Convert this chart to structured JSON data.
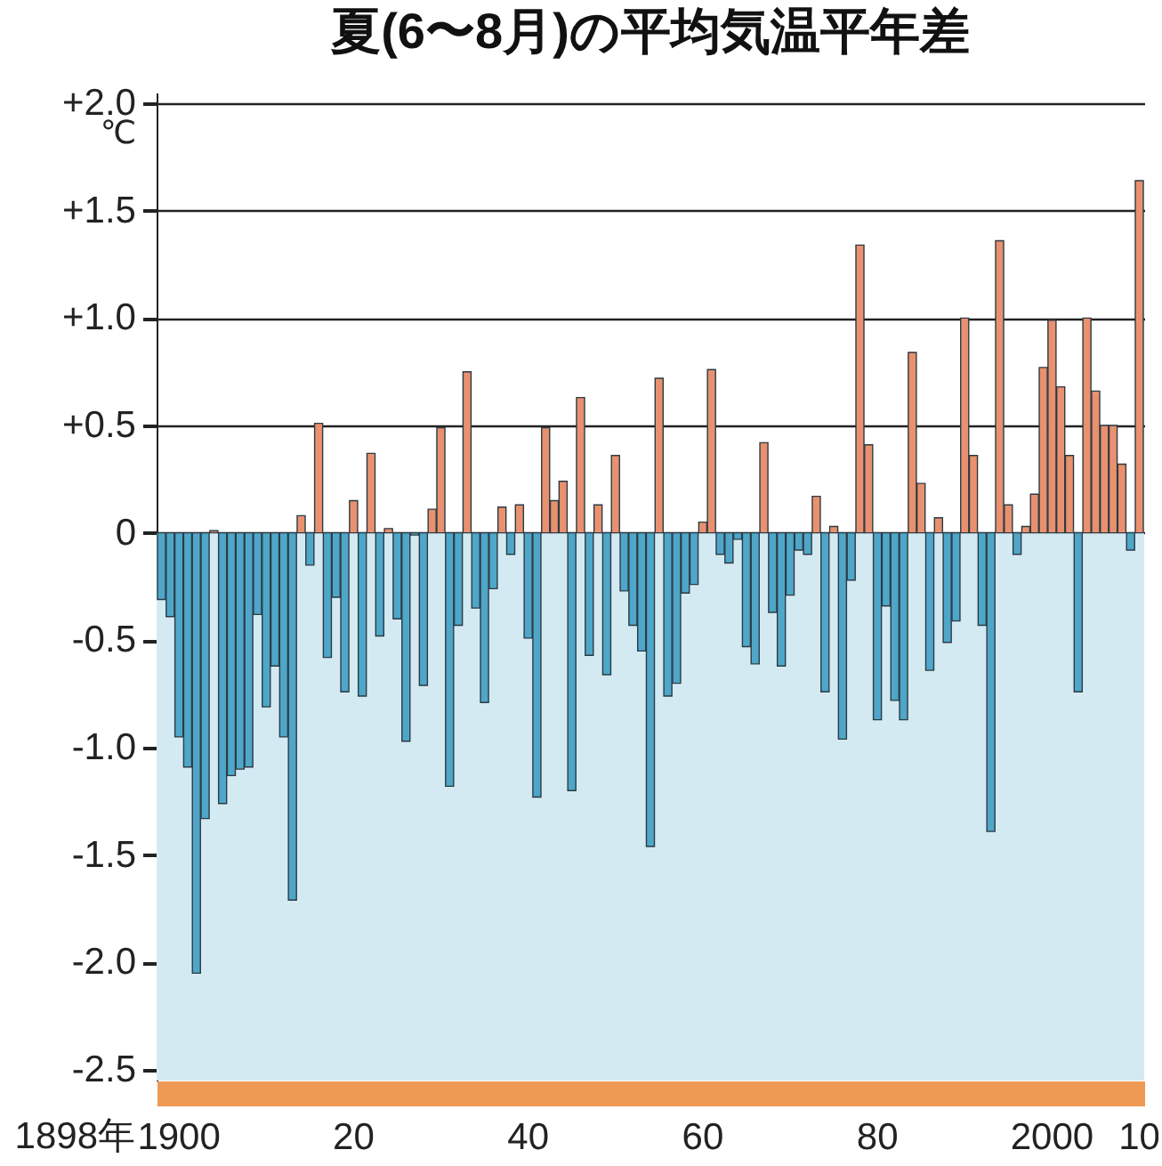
{
  "chart_data": {
    "type": "bar",
    "title": "夏(6〜8月)の平均気温平年差",
    "ylabel": "℃",
    "annotations": [
      "1898年"
    ],
    "categories": [
      null,
      null,
      "1900",
      null,
      null,
      null,
      null,
      null,
      null,
      null,
      null,
      null,
      null,
      null,
      null,
      null,
      null,
      null,
      null,
      null,
      null,
      null,
      "20",
      null,
      null,
      null,
      null,
      null,
      null,
      null,
      null,
      null,
      null,
      null,
      null,
      null,
      null,
      null,
      null,
      null,
      null,
      null,
      "40",
      null,
      null,
      null,
      null,
      null,
      null,
      null,
      null,
      null,
      null,
      null,
      null,
      null,
      null,
      null,
      null,
      null,
      null,
      null,
      "60",
      null,
      null,
      null,
      null,
      null,
      null,
      null,
      null,
      null,
      null,
      null,
      null,
      null,
      null,
      null,
      null,
      null,
      null,
      null,
      "80",
      null,
      null,
      null,
      null,
      null,
      null,
      null,
      null,
      null,
      null,
      null,
      null,
      null,
      null,
      null,
      null,
      null,
      null,
      null,
      "2000",
      null,
      null,
      null,
      null,
      null,
      null,
      null,
      null,
      null,
      "10"
    ],
    "values": [
      -0.31,
      -0.39,
      -0.95,
      -1.09,
      -2.05,
      -1.33,
      0.01,
      -1.26,
      -1.13,
      -1.1,
      -1.09,
      -0.38,
      -0.81,
      -0.62,
      -0.95,
      -1.71,
      0.08,
      -0.15,
      0.51,
      -0.58,
      -0.3,
      -0.74,
      0.15,
      -0.76,
      0.37,
      -0.48,
      0.02,
      -0.4,
      -0.97,
      -0.01,
      -0.71,
      0.11,
      0.49,
      -1.18,
      -0.43,
      0.75,
      -0.35,
      -0.79,
      -0.26,
      0.12,
      -0.1,
      0.13,
      -0.49,
      -1.23,
      0.49,
      0.15,
      0.24,
      -1.2,
      0.63,
      -0.57,
      0.13,
      -0.66,
      0.36,
      -0.27,
      -0.43,
      -0.55,
      -1.46,
      0.72,
      -0.76,
      -0.7,
      -0.28,
      -0.24,
      0.05,
      0.76,
      -0.1,
      -0.14,
      -0.03,
      -0.53,
      -0.61,
      0.42,
      -0.37,
      -0.62,
      -0.29,
      -0.08,
      -0.1,
      0.17,
      -0.74,
      0.03,
      -0.96,
      -0.22,
      1.34,
      0.41,
      -0.87,
      -0.34,
      -0.78,
      -0.87,
      0.84,
      0.23,
      -0.64,
      0.07,
      -0.51,
      -0.41,
      1.0,
      0.36,
      -0.43,
      -1.39,
      1.36,
      0.13,
      -0.1,
      0.03,
      0.18,
      0.77,
      0.99,
      0.68,
      0.36,
      -0.74,
      1.0,
      0.66,
      0.5,
      0.5,
      0.32,
      -0.08,
      1.64
    ],
    "colors": [
      "#4ea7c9",
      "#4ea7c9",
      "#4ea7c9",
      "#4ea7c9",
      "#4ea7c9",
      "#4ea7c9",
      "#e9916f",
      "#4ea7c9",
      "#4ea7c9",
      "#4ea7c9",
      "#4ea7c9",
      "#4ea7c9",
      "#4ea7c9",
      "#4ea7c9",
      "#4ea7c9",
      "#4ea7c9",
      "#e9916f",
      "#4ea7c9",
      "#e9916f",
      "#4ea7c9",
      "#4ea7c9",
      "#4ea7c9",
      "#e9916f",
      "#4ea7c9",
      "#e9916f",
      "#4ea7c9",
      "#e9916f",
      "#4ea7c9",
      "#4ea7c9",
      "#4ea7c9",
      "#4ea7c9",
      "#e9916f",
      "#e9916f",
      "#4ea7c9",
      "#4ea7c9",
      "#e9916f",
      "#4ea7c9",
      "#4ea7c9",
      "#4ea7c9",
      "#e9916f",
      "#4ea7c9",
      "#e9916f",
      "#4ea7c9",
      "#4ea7c9",
      "#e9916f",
      "#e9916f",
      "#e9916f",
      "#4ea7c9",
      "#e9916f",
      "#4ea7c9",
      "#e9916f",
      "#4ea7c9",
      "#e9916f",
      "#4ea7c9",
      "#4ea7c9",
      "#4ea7c9",
      "#4ea7c9",
      "#e9916f",
      "#4ea7c9",
      "#4ea7c9",
      "#4ea7c9",
      "#4ea7c9",
      "#e9916f",
      "#e9916f",
      "#4ea7c9",
      "#4ea7c9",
      "#4ea7c9",
      "#4ea7c9",
      "#4ea7c9",
      "#e9916f",
      "#4ea7c9",
      "#4ea7c9",
      "#4ea7c9",
      "#4ea7c9",
      "#4ea7c9",
      "#e9916f",
      "#4ea7c9",
      "#e9916f",
      "#4ea7c9",
      "#4ea7c9",
      "#e9916f",
      "#e9916f",
      "#4ea7c9",
      "#4ea7c9",
      "#4ea7c9",
      "#4ea7c9",
      "#e9916f",
      "#e9916f",
      "#4ea7c9",
      "#e9916f",
      "#4ea7c9",
      "#4ea7c9",
      "#e9916f",
      "#e9916f",
      "#4ea7c9",
      "#4ea7c9",
      "#e9916f",
      "#e9916f",
      "#4ea7c9",
      "#e9916f",
      "#e9916f",
      "#e9916f",
      "#e9916f",
      "#e9916f",
      "#e9916f",
      "#4ea7c9",
      "#e9916f",
      "#e9916f",
      "#e9916f",
      "#e9916f",
      "#e9916f",
      "#4ea7c9",
      "#e9916f"
    ],
    "ylim": [
      -2.55,
      2.05
    ],
    "yticks": [
      {
        "value": 2,
        "label": "+2.0"
      },
      {
        "value": 1.5,
        "label": "+1.5"
      },
      {
        "value": 1,
        "label": "+1.0"
      },
      {
        "value": 0.5,
        "label": "+0.5"
      },
      0,
      -0.5,
      {
        "value": -1,
        "label": "-1.0"
      },
      -1.5,
      {
        "value": -2,
        "label": "-2.0"
      },
      -2.5
    ],
    "grid": "y",
    "bands": [
      {
        "axis": "y",
        "from": -2.55,
        "to": 0,
        "color": "#d4eaf2"
      }
    ]
  }
}
